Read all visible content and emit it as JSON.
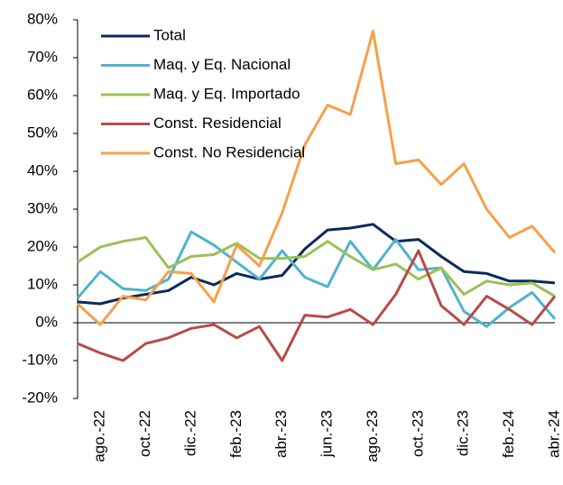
{
  "chart_data": {
    "type": "line",
    "categories": [
      null,
      "ago.-22",
      null,
      "oct.-22",
      null,
      "dic.-22",
      null,
      "feb.-23",
      null,
      "abr.-23",
      null,
      "jun.-23",
      null,
      "ago.-23",
      null,
      "oct.-23",
      null,
      "dic.-23",
      null,
      "feb.-24",
      null,
      "abr.-24"
    ],
    "series": [
      {
        "name": "Total",
        "color": "#0b2a5c",
        "values": [
          5.5,
          5,
          6.5,
          7.5,
          8.5,
          12,
          10,
          13,
          11.5,
          12.5,
          19.5,
          24.5,
          25,
          26,
          21.5,
          22,
          17.5,
          13.5,
          13,
          11,
          11,
          10.5
        ]
      },
      {
        "name": "Maq. y Eq. Nacional",
        "color": "#4fb3cf",
        "values": [
          6.5,
          13.5,
          9,
          8.5,
          11.5,
          24,
          20.5,
          16,
          11.5,
          19,
          12,
          9.5,
          21.5,
          14,
          22,
          14,
          14.5,
          3,
          -1,
          4,
          8,
          1
        ]
      },
      {
        "name": "Maq. y Eq. Importado",
        "color": "#9bc156",
        "values": [
          16,
          20,
          21.5,
          22.5,
          14.5,
          17.5,
          18,
          21,
          17,
          17,
          17.5,
          21.5,
          17.5,
          14,
          15.5,
          11.5,
          14.5,
          7.5,
          11,
          10,
          10.5,
          7
        ]
      },
      {
        "name": "Const. Residencial",
        "color": "#b94a48",
        "values": [
          -5.5,
          -8,
          -10,
          -5.5,
          -4,
          -1.5,
          -0.5,
          -4,
          -1,
          -10,
          2,
          1.5,
          3.5,
          -0.5,
          7.5,
          19,
          4.5,
          -0.5,
          7,
          3.5,
          -0.5,
          7
        ]
      },
      {
        "name": "Const. No Residencial",
        "color": "#f5a04c",
        "values": [
          5,
          -0.5,
          7,
          6,
          13.5,
          13,
          5.5,
          20.5,
          15,
          29,
          47,
          57.5,
          55,
          77,
          42,
          43,
          36.5,
          42,
          30,
          22.5,
          25.5,
          18.5
        ]
      }
    ],
    "ylim": [
      -20,
      80
    ],
    "yticks": [
      {
        "value": -20,
        "label": "-20%"
      },
      {
        "value": -10,
        "label": "-10%"
      },
      {
        "value": 0,
        "label": "0%"
      },
      {
        "value": 10,
        "label": "10%"
      },
      {
        "value": 20,
        "label": "20%"
      },
      {
        "value": 30,
        "label": "30%"
      },
      {
        "value": 40,
        "label": "40%"
      },
      {
        "value": 50,
        "label": "50%"
      },
      {
        "value": 60,
        "label": "60%"
      },
      {
        "value": 70,
        "label": "70%"
      },
      {
        "value": 80,
        "label": "80%"
      }
    ],
    "legend": "upper-left"
  }
}
